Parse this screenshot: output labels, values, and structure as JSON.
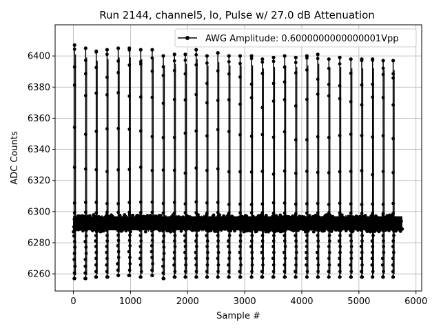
{
  "chart_data": {
    "type": "line",
    "title": "Run 2144, channel5, lo, Pulse w/ 27.0 dB Attenuation",
    "xlabel": "Sample #",
    "ylabel": "ADC Counts",
    "xlim": [
      -320,
      6100
    ],
    "ylim": [
      6249,
      6420
    ],
    "x_ticks": [
      0,
      1000,
      2000,
      3000,
      4000,
      5000,
      6000
    ],
    "y_ticks": [
      6260,
      6280,
      6300,
      6320,
      6340,
      6360,
      6380,
      6400
    ],
    "x_tick_labels": [
      "0",
      "1000",
      "2000",
      "3000",
      "4000",
      "5000",
      "6000"
    ],
    "y_tick_labels": [
      "6260",
      "6280",
      "6300",
      "6320",
      "6340",
      "6360",
      "6380",
      "6400"
    ],
    "grid": true,
    "legend_position": "top-right",
    "baseline": 6293,
    "noise_band": [
      6287,
      6298
    ],
    "sample_range": [
      0,
      5760
    ],
    "series": [
      {
        "name": "AWG Amplitude: 0.6000000000000001Vpp",
        "color": "#000000",
        "marker": "circle",
        "pulses": [
          {
            "x": 20,
            "max": 6407,
            "min": 6257
          },
          {
            "x": 215,
            "max": 6405,
            "min": 6257
          },
          {
            "x": 400,
            "max": 6403,
            "min": 6258
          },
          {
            "x": 590,
            "max": 6404,
            "min": 6258
          },
          {
            "x": 785,
            "max": 6405,
            "min": 6259
          },
          {
            "x": 980,
            "max": 6405,
            "min": 6259
          },
          {
            "x": 1180,
            "max": 6404,
            "min": 6258
          },
          {
            "x": 1380,
            "max": 6404,
            "min": 6259
          },
          {
            "x": 1575,
            "max": 6400,
            "min": 6257
          },
          {
            "x": 1770,
            "max": 6401,
            "min": 6258
          },
          {
            "x": 1960,
            "max": 6401,
            "min": 6258
          },
          {
            "x": 2150,
            "max": 6404,
            "min": 6258
          },
          {
            "x": 2340,
            "max": 6400,
            "min": 6258
          },
          {
            "x": 2530,
            "max": 6402,
            "min": 6258
          },
          {
            "x": 2725,
            "max": 6400,
            "min": 6258
          },
          {
            "x": 2920,
            "max": 6400,
            "min": 6258
          },
          {
            "x": 3120,
            "max": 6400,
            "min": 6258
          },
          {
            "x": 3310,
            "max": 6398,
            "min": 6258
          },
          {
            "x": 3505,
            "max": 6399,
            "min": 6258
          },
          {
            "x": 3700,
            "max": 6400,
            "min": 6258
          },
          {
            "x": 3895,
            "max": 6399,
            "min": 6258
          },
          {
            "x": 4090,
            "max": 6400,
            "min": 6258
          },
          {
            "x": 4280,
            "max": 6401,
            "min": 6258
          },
          {
            "x": 4475,
            "max": 6398,
            "min": 6258
          },
          {
            "x": 4665,
            "max": 6399,
            "min": 6258
          },
          {
            "x": 4860,
            "max": 6398,
            "min": 6258
          },
          {
            "x": 5050,
            "max": 6398,
            "min": 6258
          },
          {
            "x": 5240,
            "max": 6398,
            "min": 6258
          },
          {
            "x": 5425,
            "max": 6397,
            "min": 6258
          },
          {
            "x": 5600,
            "max": 6397,
            "min": 6258
          }
        ]
      }
    ]
  }
}
